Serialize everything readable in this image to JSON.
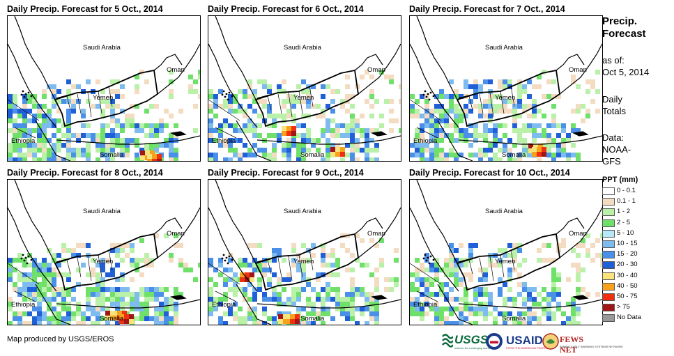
{
  "panels": [
    {
      "title": "Daily Precip. Forecast for 5 Oct., 2014"
    },
    {
      "title": "Daily Precip. Forecast for 6 Oct., 2014"
    },
    {
      "title": "Daily Precip. Forecast for 7 Oct., 2014"
    },
    {
      "title": "Daily Precip. Forecast for 8 Oct., 2014"
    },
    {
      "title": "Daily Precip. Forecast for 9 Oct., 2014"
    },
    {
      "title": "Daily Precip. Forecast for 10 Oct., 2014"
    }
  ],
  "map_labels": {
    "saudi_arabia": "Saudi Arabia",
    "oman": "Oman",
    "yemen": "Yemen",
    "ethiopia": "Ethiopia",
    "somalia": "Somalia"
  },
  "sidebar": {
    "title_line1": "Precip.",
    "title_line2": "Forecast",
    "asof_line1": "as of:",
    "asof_line2": "Oct 5, 2014",
    "totals_line1": "Daily",
    "totals_line2": "Totals",
    "data_line1": "Data:",
    "data_line2": "NOAA-",
    "data_line3": "GFS"
  },
  "legend": {
    "title": "PPT (mm)",
    "items": [
      {
        "label": "0 - 0.1",
        "color": "#ffffff"
      },
      {
        "label": "0.1 - 1",
        "color": "#f3dcc2"
      },
      {
        "label": "1 - 2",
        "color": "#b9f1a9"
      },
      {
        "label": "2 - 5",
        "color": "#6fe06a"
      },
      {
        "label": "5 - 10",
        "color": "#b6e9f8"
      },
      {
        "label": "10 - 15",
        "color": "#7ebcf0"
      },
      {
        "label": "15 - 20",
        "color": "#4a8fe8"
      },
      {
        "label": "20 - 30",
        "color": "#1f5fd8"
      },
      {
        "label": "30 - 40",
        "color": "#fbe37c"
      },
      {
        "label": "40 - 50",
        "color": "#f7a21b"
      },
      {
        "label": "50 - 75",
        "color": "#f03010"
      },
      {
        "label": "> 75",
        "color": "#a11616"
      },
      {
        "label": "No Data",
        "color": "#9a9a9a"
      }
    ]
  },
  "footer": {
    "credit": "Map produced by USGS/EROS",
    "usgs": "USGS",
    "usgs_tag": "science for a changing world",
    "usaid": "USAID",
    "usaid_tag": "FROM THE AMERICAN PEOPLE",
    "fews": "FEWS NET",
    "fews_tag": "FAMINE EARLY WARNING SYSTEMS NETWORK"
  }
}
